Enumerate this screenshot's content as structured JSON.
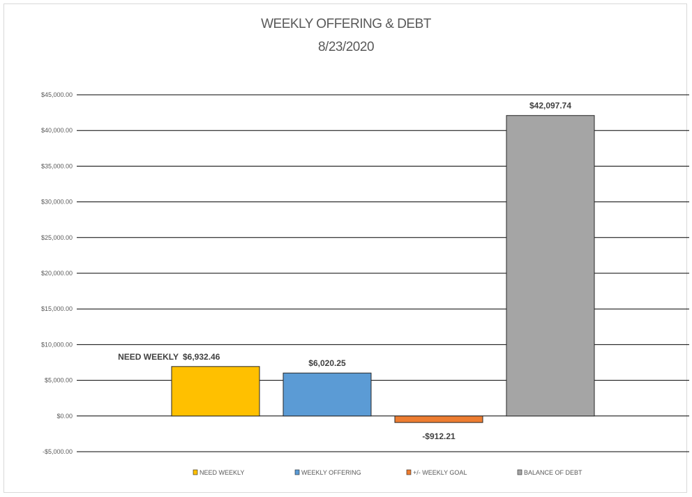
{
  "chart_data": {
    "type": "bar",
    "title": "WEEKLY OFFERING & DEBT",
    "subtitle": "8/23/2020",
    "categories": [
      "NEED WEEKLY",
      "WEEKLY OFFERING",
      "+/- WEEKLY GOAL",
      "BALANCE OF DEBT"
    ],
    "values": [
      6932.46,
      6020.25,
      -912.21,
      42097.74
    ],
    "data_labels": [
      "$6,932.46",
      "$6,020.25",
      "-$912.21",
      "$42,097.74"
    ],
    "annotation": "NEED WEEKLY",
    "colors": [
      "#ffc000",
      "#5b9bd5",
      "#ed7d31",
      "#a5a5a5"
    ],
    "ylim": [
      -5000,
      45000
    ],
    "y_ticks": [
      -5000,
      0,
      5000,
      10000,
      15000,
      20000,
      25000,
      30000,
      35000,
      40000,
      45000
    ],
    "y_tick_labels": [
      "-$5,000.00",
      "$0.00",
      "$5,000.00",
      "$10,000.00",
      "$15,000.00",
      "$20,000.00",
      "$25,000.00",
      "$30,000.00",
      "$35,000.00",
      "$40,000.00",
      "$45,000.00"
    ],
    "grid": true,
    "legend_position": "bottom"
  }
}
